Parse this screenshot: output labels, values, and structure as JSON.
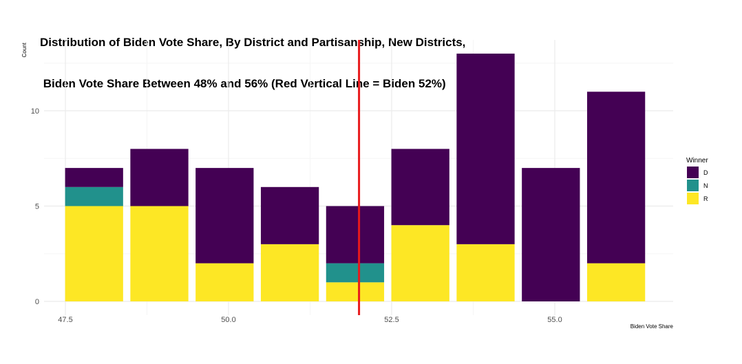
{
  "chart_data": {
    "type": "bar",
    "stacked": true,
    "title_lines": [
      "Distribution of Biden Vote Share, By District and Partisanship, New Districts,",
      " Biden Vote Share Between 48% and 56% (Red Vertical Line = Biden 52%)"
    ],
    "xlabel": "Biden Vote Share",
    "ylabel": "Count",
    "xlim": [
      47.0,
      56.8
    ],
    "ylim": [
      0,
      13.0
    ],
    "x_ticks": [
      47.5,
      50.0,
      52.5,
      55.0
    ],
    "x_tick_labels": [
      "47.5",
      "50.0",
      "52.5",
      "55.0"
    ],
    "y_ticks": [
      0,
      5,
      10
    ],
    "y_tick_labels": [
      "0",
      "5",
      "10"
    ],
    "grid": true,
    "bin_width": 0.889,
    "bin_centers": [
      47.94,
      48.94,
      49.94,
      50.94,
      51.94,
      52.94,
      53.94,
      54.94,
      55.94
    ],
    "series": [
      {
        "name": "R",
        "values": [
          5,
          5,
          2,
          3,
          1,
          4,
          3,
          0,
          2
        ]
      },
      {
        "name": "N",
        "values": [
          1,
          0,
          0,
          0,
          1,
          0,
          0,
          0,
          0
        ]
      },
      {
        "name": "D",
        "values": [
          1,
          3,
          5,
          3,
          3,
          4,
          10,
          7,
          9
        ]
      }
    ],
    "reference_line": {
      "x": 52.0,
      "color": "#e8191c"
    },
    "legend": {
      "title": "Winner",
      "placement": "right",
      "entries": [
        {
          "label": "D",
          "color": "#440154"
        },
        {
          "label": "N",
          "color": "#21918c"
        },
        {
          "label": "R",
          "color": "#fde725"
        }
      ]
    },
    "colors": {
      "R": "#fde725",
      "N": "#21918c",
      "D": "#440154",
      "grid_major": "#ebebeb",
      "grid_minor": "#f5f5f5"
    }
  }
}
